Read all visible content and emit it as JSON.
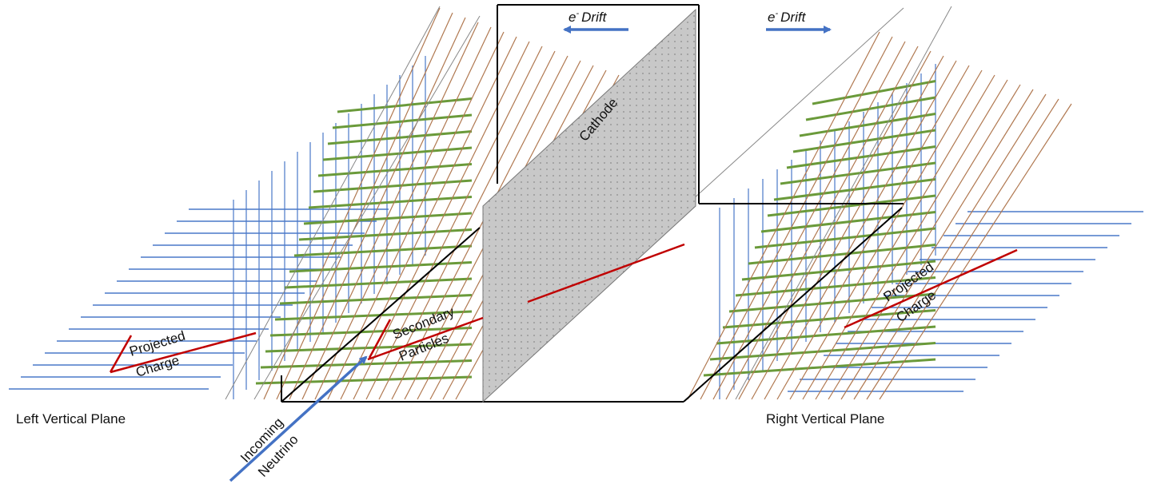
{
  "labels": {
    "left_drift": "Drift",
    "right_drift": "Drift",
    "electron": "e",
    "electron_sup": "-",
    "cathode": "Cathode",
    "secondary_1": "Secondary",
    "secondary_2": "Particles",
    "left_projected_1": "Projected",
    "left_projected_2": "Charge",
    "right_projected_1": "Projected",
    "right_projected_2": "Charge",
    "left_plane": "Left Vertical Plane",
    "right_plane": "Right Vertical Plane",
    "incoming_1": "Incoming",
    "incoming_2": "Neutrino"
  },
  "colors": {
    "blue_wire": "#4a78c8",
    "green_wire": "#6a9a3a",
    "brown_wire": "#b07850",
    "track_red": "#c00000",
    "arrow_blue": "#4472c4",
    "cathode_fill": "#c8c8c8",
    "frame": "#000000"
  }
}
